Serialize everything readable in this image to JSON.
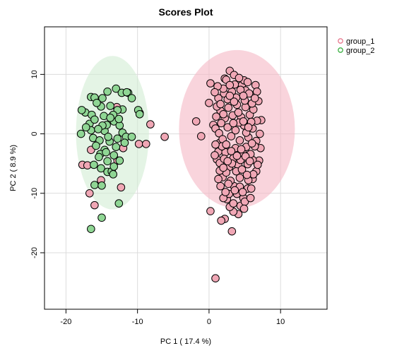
{
  "chart_data": {
    "type": "scatter",
    "title": "Scores Plot",
    "xlabel": "PC 1 ( 17.4 %)",
    "ylabel": "PC 2 ( 8.9 %)",
    "xlim": [
      -23,
      16.5
    ],
    "ylim": [
      -29.5,
      18
    ],
    "xticks": [
      -20,
      -10,
      0,
      10
    ],
    "yticks": [
      -20,
      -10,
      0,
      10
    ],
    "grid": true,
    "legend_position": "top-right",
    "series": [
      {
        "name": "group_1",
        "color": "#e8798f",
        "fill": "#f0a7b5",
        "ellipse": {
          "center": [
            3.9,
            0.8
          ],
          "rx": 8.1,
          "ry": 13.3,
          "fill": "#f5b8c4"
        },
        "points": [
          [
            -17.7,
            -5.2
          ],
          [
            -17,
            -5.3
          ],
          [
            -16.5,
            -2.7
          ],
          [
            -16.7,
            -10
          ],
          [
            -16,
            -12
          ],
          [
            -15.1,
            -7.8
          ],
          [
            -12.3,
            -9
          ],
          [
            -12.8,
            -4.5
          ],
          [
            -12,
            -2.4
          ],
          [
            -9.8,
            -1.7
          ],
          [
            -8.8,
            -1.7
          ],
          [
            -6.2,
            -0.5
          ],
          [
            -8.2,
            1.6
          ],
          [
            -9.7,
            3.5
          ],
          [
            -12.9,
            4.5
          ],
          [
            -1.8,
            2.1
          ],
          [
            -1.1,
            -0.4
          ],
          [
            0.2,
            8.5
          ],
          [
            0,
            5.2
          ],
          [
            0.6,
            1.5
          ],
          [
            0.9,
            0.9
          ],
          [
            1.3,
            -3
          ],
          [
            1.1,
            -4.3
          ],
          [
            1.5,
            -1.5
          ],
          [
            1.8,
            3.4
          ],
          [
            2.1,
            6.8
          ],
          [
            2.2,
            9.3
          ],
          [
            2.9,
            10.6
          ],
          [
            3.5,
            9.9
          ],
          [
            4.6,
            8.2
          ],
          [
            4.9,
            9
          ],
          [
            5.1,
            7.3
          ],
          [
            6.5,
            8.2
          ],
          [
            6.3,
            6.5
          ],
          [
            6.9,
            5.5
          ],
          [
            7.3,
            2.3
          ],
          [
            7.1,
            0
          ],
          [
            7.2,
            -2.4
          ],
          [
            7,
            -4.5
          ],
          [
            6.6,
            -6.3
          ],
          [
            6.1,
            -7.6
          ],
          [
            5.4,
            -9.2
          ],
          [
            4.8,
            -10.8
          ],
          [
            4.4,
            -12.1
          ],
          [
            4.1,
            -13.5
          ],
          [
            3.2,
            -16.4
          ],
          [
            2.2,
            -14.3
          ],
          [
            1.7,
            -14.6
          ],
          [
            0.2,
            -13
          ],
          [
            0.9,
            -24.3
          ],
          [
            2.5,
            -11
          ],
          [
            2.8,
            -10.1
          ],
          [
            3.5,
            -8.8
          ],
          [
            1.6,
            -8.8
          ],
          [
            1.9,
            -7.3
          ],
          [
            4.3,
            -7.4
          ],
          [
            5.5,
            -7.8
          ],
          [
            5.9,
            -9.2
          ],
          [
            5,
            -11.4
          ],
          [
            3.4,
            -13.1
          ],
          [
            2.9,
            -12.3
          ],
          [
            3.9,
            -10.1
          ],
          [
            2,
            -10.8
          ],
          [
            4.9,
            -12.6
          ],
          [
            5.8,
            -10.8
          ],
          [
            6.2,
            -6.8
          ],
          [
            1.5,
            -4.9
          ],
          [
            2.3,
            -3.1
          ],
          [
            2.8,
            -5.6
          ],
          [
            3.4,
            -4.1
          ],
          [
            4.1,
            -5.3
          ],
          [
            4.7,
            -3.2
          ],
          [
            5.4,
            -5.1
          ],
          [
            6.1,
            -4.4
          ],
          [
            1.4,
            0.1
          ],
          [
            1.9,
            -0.9
          ],
          [
            2.6,
            1.1
          ],
          [
            3.1,
            -0.4
          ],
          [
            3.7,
            0.6
          ],
          [
            4.3,
            -1.1
          ],
          [
            4.9,
            1.4
          ],
          [
            5.5,
            -0.6
          ],
          [
            6.1,
            0.9
          ],
          [
            6.6,
            -1.2
          ],
          [
            1.6,
            3.9
          ],
          [
            2.2,
            2.6
          ],
          [
            2.7,
            4.4
          ],
          [
            3.3,
            3.1
          ],
          [
            3.9,
            4.9
          ],
          [
            4.5,
            2.8
          ],
          [
            5.1,
            4.5
          ],
          [
            5.7,
            3.2
          ],
          [
            6.2,
            4.1
          ],
          [
            1.3,
            6
          ],
          [
            2,
            7.6
          ],
          [
            2.6,
            5.8
          ],
          [
            3.2,
            7.1
          ],
          [
            3.8,
            6.1
          ],
          [
            4.4,
            7.4
          ],
          [
            5,
            5.6
          ],
          [
            5.6,
            6.8
          ],
          [
            6,
            5.1
          ],
          [
            1.2,
            8
          ],
          [
            2.4,
            9.1
          ],
          [
            3.6,
            8.3
          ],
          [
            4.2,
            9.4
          ],
          [
            5.4,
            8.7
          ],
          [
            0.8,
            7
          ],
          [
            1.1,
            4.6
          ],
          [
            1.8,
            -2.1
          ],
          [
            2.4,
            -6.5
          ],
          [
            3,
            -7.9
          ],
          [
            3.7,
            -2.4
          ],
          [
            4.4,
            -4.4
          ],
          [
            5.2,
            -2.2
          ],
          [
            5.8,
            -3.4
          ],
          [
            6.4,
            -2.1
          ],
          [
            6.7,
            2.2
          ],
          [
            0.9,
            -1.8
          ],
          [
            1,
            2.9
          ],
          [
            1.6,
            5
          ],
          [
            2.9,
            8.2
          ],
          [
            4.8,
            6.4
          ],
          [
            6.7,
            7.1
          ],
          [
            1.5,
            -6.2
          ],
          [
            2.1,
            -4.2
          ],
          [
            3.1,
            -2.9
          ],
          [
            3.8,
            -6.3
          ],
          [
            4.6,
            -6
          ],
          [
            5.3,
            -6.9
          ],
          [
            6.8,
            -5.2
          ],
          [
            2.3,
            -9.8
          ],
          [
            3.4,
            -11.7
          ],
          [
            4.3,
            -8.9
          ],
          [
            0.8,
            -3.6
          ],
          [
            1.3,
            -7.6
          ],
          [
            6.4,
            6
          ],
          [
            5.9,
            2
          ],
          [
            5.2,
            0.2
          ],
          [
            4.2,
            1.9
          ],
          [
            3.4,
            1.8
          ],
          [
            2.4,
            -1.8
          ],
          [
            1.7,
            1.8
          ],
          [
            2,
            3.3
          ],
          [
            2.9,
            6.4
          ],
          [
            3.5,
            5.4
          ],
          [
            4.1,
            3.6
          ],
          [
            4.8,
            2.1
          ],
          [
            5.5,
            1.1
          ],
          [
            6,
            -1.6
          ],
          [
            5.1,
            -3.8
          ],
          [
            4.5,
            -2.6
          ],
          [
            3.9,
            -3.7
          ],
          [
            3.2,
            -5
          ],
          [
            2.6,
            -4.6
          ],
          [
            2,
            -5.7
          ],
          [
            3.6,
            -9.5
          ],
          [
            4.7,
            -9.8
          ],
          [
            2.7,
            -8.4
          ],
          [
            5.7,
            -4.6
          ]
        ]
      },
      {
        "name": "group_2",
        "color": "#3cb043",
        "fill": "#8fd694",
        "ellipse": {
          "center": [
            -13.5,
            0.2
          ],
          "rx": 5.1,
          "ry": 12.9,
          "fill": "#d2ecd4"
        },
        "points": [
          [
            -16.5,
            6.2
          ],
          [
            -16,
            6.1
          ],
          [
            -14.9,
            6
          ],
          [
            -14.2,
            7.1
          ],
          [
            -13,
            7.6
          ],
          [
            -12.2,
            6.9
          ],
          [
            -11.3,
            6.9
          ],
          [
            -11.5,
            7
          ],
          [
            -10.8,
            6
          ],
          [
            -9.9,
            4
          ],
          [
            -9.7,
            3.3
          ],
          [
            -12.1,
            4.1
          ],
          [
            -12.8,
            4
          ],
          [
            -13.8,
            4.7
          ],
          [
            -15.1,
            4.6
          ],
          [
            -15.7,
            5.2
          ],
          [
            -17.3,
            3.6
          ],
          [
            -17.8,
            4
          ],
          [
            -16.4,
            3.2
          ],
          [
            -16.7,
            1.7
          ],
          [
            -16.5,
            0.6
          ],
          [
            -17.9,
            0
          ],
          [
            -16.2,
            -0.7
          ],
          [
            -15.3,
            -1.1
          ],
          [
            -14.6,
            0.5
          ],
          [
            -14.3,
            1.5
          ],
          [
            -14.9,
            1.4
          ],
          [
            -13.3,
            2.1
          ],
          [
            -12.1,
            0.2
          ],
          [
            -11.6,
            -0.5
          ],
          [
            -12.8,
            -0.8
          ],
          [
            -13.9,
            -1.3
          ],
          [
            -14.6,
            -2.7
          ],
          [
            -13.3,
            -3.6
          ],
          [
            -12.5,
            -4.5
          ],
          [
            -14.2,
            -4.6
          ],
          [
            -15.2,
            -3.4
          ],
          [
            -16.1,
            -5.2
          ],
          [
            -15.1,
            -5.8
          ],
          [
            -14.2,
            -6.4
          ],
          [
            -13.6,
            -6.3
          ],
          [
            -13.4,
            -6.8
          ],
          [
            -16,
            -8.6
          ],
          [
            -15,
            -8.7
          ],
          [
            -16.5,
            -16
          ],
          [
            -15,
            -14.1
          ],
          [
            -12.6,
            -11.7
          ],
          [
            -12.5,
            1.4
          ],
          [
            -13.4,
            3.2
          ],
          [
            -14.7,
            3
          ],
          [
            -16,
            2.4
          ],
          [
            -17.2,
            1.1
          ],
          [
            -15.8,
            -2
          ],
          [
            -14.1,
            -0.5
          ],
          [
            -13,
            -2.2
          ],
          [
            -11.8,
            -1.5
          ],
          [
            -15.4,
            -3.9
          ],
          [
            -14.4,
            -3.1
          ],
          [
            -13.8,
            2.7
          ],
          [
            -12.6,
            2.5
          ],
          [
            -15.5,
            0.8
          ],
          [
            -13.3,
            -5.5
          ],
          [
            -10.8,
            -0.5
          ]
        ]
      }
    ]
  }
}
